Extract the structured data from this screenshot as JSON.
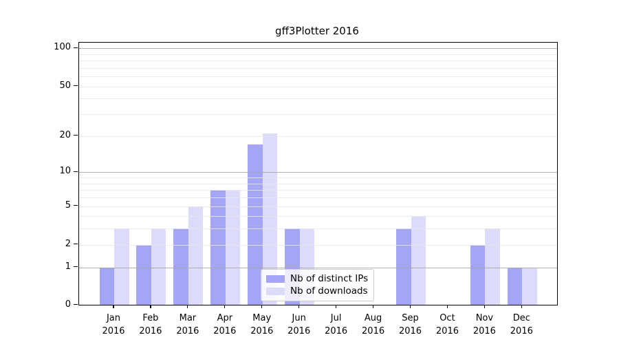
{
  "title": "gff3Plotter 2016",
  "year": "2016",
  "chart_data": {
    "type": "bar",
    "title": "gff3Plotter 2016",
    "categories": [
      "Jan",
      "Feb",
      "Mar",
      "Apr",
      "May",
      "Jun",
      "Jul",
      "Aug",
      "Sep",
      "Oct",
      "Nov",
      "Dec"
    ],
    "category_year": "2016",
    "series": [
      {
        "name": "Nb of distinct IPs",
        "color": "#a5a5f5",
        "values": [
          1,
          2,
          3,
          7,
          17,
          3,
          0,
          0,
          3,
          0,
          2,
          1
        ]
      },
      {
        "name": "Nb of downloads",
        "color": "#dcdcfa",
        "values": [
          3,
          3,
          5,
          7,
          21,
          3,
          0,
          0,
          4,
          0,
          3,
          1
        ]
      }
    ],
    "yscale": "log1p",
    "yticks": [
      0,
      1,
      2,
      5,
      10,
      20,
      50,
      100
    ],
    "ylim": [
      0,
      110
    ],
    "major_gridlines": [
      1,
      10,
      100
    ],
    "minor_gridlines": [
      2,
      3,
      4,
      5,
      6,
      7,
      8,
      9,
      20,
      30,
      40,
      50,
      60,
      70,
      80,
      90
    ],
    "grid_on": true,
    "grid_above_bars": true,
    "legend_position": "lower center",
    "colors": {
      "major_grid": "#a5a5a5",
      "minor_grid": "#e8e8e8",
      "axis": "#000000",
      "background": "#ffffff"
    }
  }
}
